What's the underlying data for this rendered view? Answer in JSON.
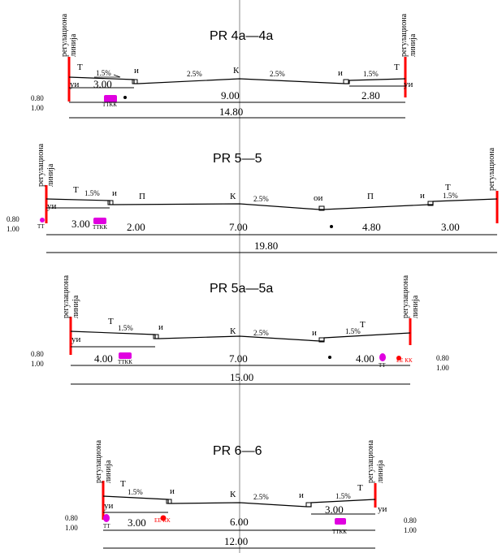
{
  "colors": {
    "regulation_line": "#ff0000",
    "installation_a": "#e000e0",
    "installation_b": "#ff0000",
    "axis": "#b0b0b0",
    "line": "#000000"
  },
  "labels": {
    "regulation_line_a": "регулациона",
    "regulation_line_b": "линија",
    "ui": "уи",
    "t": "Т",
    "i": "и",
    "k": "К",
    "p": "П",
    "oi": "ои",
    "tkk": "ТТКК",
    "t_small": "ТТ",
    "ek_kk": "ЕЕ КК"
  },
  "offsets": {
    "upper": "0.80",
    "lower": "1.00"
  },
  "sections": [
    {
      "title": "PR  4a—4a",
      "slopes": [
        "1.5%",
        "2.5%",
        "2.5%",
        "1.5%"
      ],
      "widths": [
        "3.00",
        "9.00",
        "2.80"
      ],
      "total": "14.80"
    },
    {
      "title": "PR  5—5",
      "slopes": [
        "1.5%",
        "2.5%",
        "1.5%"
      ],
      "widths": [
        "3.00",
        "2.00",
        "7.00",
        "4.80",
        "3.00"
      ],
      "total": "19.80"
    },
    {
      "title": "PR  5a—5a",
      "slopes": [
        "1.5%",
        "2.5%",
        "1.5%"
      ],
      "widths": [
        "4.00",
        "7.00",
        "4.00"
      ],
      "total": "15.00"
    },
    {
      "title": "PR  6—6",
      "slopes": [
        "1.5%",
        "2.5%",
        "1.5%"
      ],
      "widths": [
        "3.00",
        "6.00",
        "3.00"
      ],
      "total": "12.00"
    }
  ]
}
